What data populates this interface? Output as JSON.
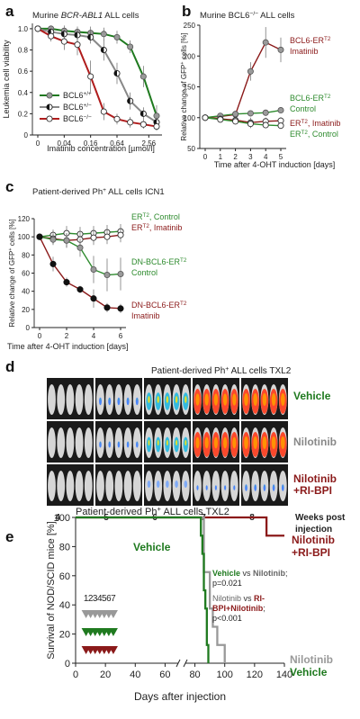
{
  "chart_data": [
    {
      "id": "a",
      "type": "line",
      "panel_letter": "a",
      "title_parts": [
        "Murine ",
        "BCR-ABL1",
        " ALL cells"
      ],
      "xlabel": "Imatinib concentration [µmol/l]",
      "ylabel": "Leukemia cell viability",
      "x_tick_labels": [
        "0",
        "0.04",
        "0.16",
        "0.64",
        "2.56"
      ],
      "y_tick_labels": [
        "0",
        "0.2",
        "0.4",
        "0.6",
        "0.8",
        "1.0"
      ],
      "ylim": [
        0,
        1.05
      ],
      "legend_position": "bottom-left",
      "series": [
        {
          "name": "BCL6+/+",
          "label_base": "BCL6",
          "label_sup": "+/+",
          "color": "#1f7a1f",
          "marker": "gray-filled",
          "x": [
            0,
            1,
            2,
            3,
            4,
            5,
            6,
            7,
            8,
            9
          ],
          "y": [
            1.0,
            1.0,
            0.98,
            0.97,
            0.96,
            0.95,
            0.92,
            0.83,
            0.55,
            0.18
          ],
          "err": [
            0.02,
            0.03,
            0.05,
            0.05,
            0.06,
            0.06,
            0.06,
            0.06,
            0.1,
            0.1
          ]
        },
        {
          "name": "BCL6+/-",
          "label_base": "BCL6",
          "label_sup": "+/−",
          "color": "#888888",
          "marker": "half",
          "x": [
            0,
            1,
            2,
            3,
            4,
            5,
            6,
            7,
            8,
            9
          ],
          "y": [
            1.0,
            0.97,
            0.95,
            0.94,
            0.92,
            0.8,
            0.58,
            0.32,
            0.2,
            0.12
          ],
          "err": [
            0.02,
            0.03,
            0.04,
            0.06,
            0.06,
            0.1,
            0.1,
            0.08,
            0.06,
            0.04
          ]
        },
        {
          "name": "BCL6-/-",
          "label_base": "BCL6",
          "label_sup": "−/−",
          "color": "#b01c1c",
          "marker": "open",
          "x": [
            0,
            1,
            2,
            3,
            4,
            5,
            6,
            7,
            8,
            9
          ],
          "y": [
            1.0,
            0.93,
            0.88,
            0.85,
            0.55,
            0.22,
            0.15,
            0.12,
            0.1,
            0.08
          ],
          "err": [
            0.02,
            0.05,
            0.08,
            0.1,
            0.15,
            0.08,
            0.05,
            0.05,
            0.04,
            0.04
          ]
        }
      ]
    },
    {
      "id": "b",
      "type": "line",
      "panel_letter": "b",
      "title_parts": [
        "Murine BCL6",
        "−/−",
        " ALL cells"
      ],
      "xlabel": "Time after 4-OHT induction [days]",
      "ylabel_parts": [
        "Relative change of GFP",
        "+",
        " cells [%]"
      ],
      "x_tick_labels": [
        "0",
        "1",
        "2",
        "3",
        "4",
        "5"
      ],
      "y_tick_labels": [
        "50",
        "100",
        "150",
        "200",
        "250"
      ],
      "xlim": [
        0,
        5
      ],
      "ylim": [
        50,
        250
      ],
      "series": [
        {
          "name": "BCL6-ERT2 Imatinib",
          "label_lines": [
            [
              "BCL6-ER",
              "T2"
            ],
            [
              "Imatinib",
              ""
            ]
          ],
          "color": "#8b1a1a",
          "marker": "gray-filled",
          "x": [
            0,
            1,
            2,
            3,
            4,
            5
          ],
          "y": [
            100,
            102,
            105,
            175,
            222,
            210
          ],
          "err": [
            3,
            4,
            5,
            15,
            25,
            20
          ]
        },
        {
          "name": "BCL6-ERT2 Control",
          "label_lines": [
            [
              "BCL6-ER",
              "T2"
            ],
            [
              "Control",
              ""
            ]
          ],
          "color": "#2e8b2e",
          "marker": "gray-filled",
          "x": [
            0,
            1,
            2,
            3,
            4,
            5
          ],
          "y": [
            100,
            103,
            106,
            107,
            108,
            112
          ],
          "err": [
            3,
            4,
            4,
            4,
            5,
            5
          ]
        },
        {
          "name": "ERT2 Imatinib",
          "label_lines": [
            [
              "ER",
              "T2",
              ", Imatinib"
            ]
          ],
          "color": "#8b1a1a",
          "marker": "open",
          "x": [
            0,
            1,
            2,
            3,
            4,
            5
          ],
          "y": [
            100,
            98,
            96,
            92,
            94,
            95
          ],
          "err": [
            3,
            5,
            6,
            8,
            6,
            6
          ]
        },
        {
          "name": "ERT2 Control",
          "label_lines": [
            [
              "ER",
              "T2",
              ", Control"
            ]
          ],
          "color": "#2e8b2e",
          "marker": "open",
          "x": [
            0,
            1,
            2,
            3,
            4,
            5
          ],
          "y": [
            100,
            97,
            94,
            90,
            88,
            87
          ],
          "err": [
            3,
            5,
            5,
            7,
            5,
            5
          ]
        }
      ]
    },
    {
      "id": "c",
      "type": "line",
      "panel_letter": "c",
      "title_parts": [
        "Patient-derived Ph",
        "+",
        " ALL cells ICN1"
      ],
      "xlabel": "Time after 4-OHT induction [days]",
      "ylabel_parts": [
        "Relative change of GFP",
        "+",
        " cells [%]"
      ],
      "x_tick_labels": [
        "0",
        "2",
        "4",
        "6"
      ],
      "y_tick_labels": [
        "0",
        "20",
        "40",
        "60",
        "80",
        "100",
        "120"
      ],
      "xlim": [
        0,
        6
      ],
      "ylim": [
        0,
        120
      ],
      "series": [
        {
          "name": "ERT2, Control",
          "label_lines": [
            [
              "ER",
              "T2",
              ", Control"
            ]
          ],
          "color": "#2e8b2e",
          "marker": "open",
          "x": [
            0,
            1,
            2,
            3,
            4,
            5,
            6
          ],
          "y": [
            100,
            102,
            104,
            103,
            104,
            105,
            106
          ],
          "err": [
            3,
            6,
            8,
            8,
            8,
            8,
            8
          ]
        },
        {
          "name": "ERT2, Imatinib",
          "label_lines": [
            [
              "ER",
              "T2",
              ", Imatinib"
            ]
          ],
          "color": "#8b1a1a",
          "marker": "open",
          "x": [
            0,
            1,
            2,
            3,
            4,
            5,
            6
          ],
          "y": [
            100,
            98,
            96,
            97,
            99,
            100,
            102
          ],
          "err": [
            3,
            6,
            8,
            8,
            8,
            8,
            8
          ]
        },
        {
          "name": "DN-BCL6-ERT2 Control",
          "label_lines": [
            [
              "DN-BCL6-ER",
              "T2"
            ],
            [
              "Control",
              ""
            ]
          ],
          "color": "#2e8b2e",
          "marker": "gray-filled",
          "x": [
            0,
            1,
            2,
            3,
            4,
            5,
            6
          ],
          "y": [
            100,
            97,
            96,
            88,
            64,
            58,
            59
          ],
          "err": [
            3,
            6,
            8,
            10,
            15,
            18,
            18
          ]
        },
        {
          "name": "DN-BCL6-ERT2 Imatinib",
          "label_lines": [
            [
              "DN-BCL6-ER",
              "T2"
            ],
            [
              "Imatinib",
              ""
            ]
          ],
          "color": "#8b1a1a",
          "marker": "black",
          "x": [
            0,
            1,
            2,
            3,
            4,
            5,
            6
          ],
          "y": [
            100,
            70,
            50,
            42,
            32,
            22,
            21
          ],
          "err": [
            3,
            8,
            5,
            4,
            10,
            5,
            5
          ]
        }
      ]
    },
    {
      "id": "d",
      "type": "other",
      "panel_letter": "d",
      "title_parts": [
        "Patient-derived Ph",
        "+",
        " ALL cells TXL2"
      ],
      "rows": [
        {
          "name": "Vehicle",
          "color": "#1f7a1f",
          "label_lines": [
            "Vehicle"
          ],
          "intensity": [
            0.0,
            0.15,
            0.55,
            0.95,
            1.0
          ]
        },
        {
          "name": "Nilotinib",
          "color": "#888888",
          "label_lines": [
            "Nilotinib"
          ],
          "intensity": [
            0.0,
            0.1,
            0.45,
            0.9,
            1.0
          ]
        },
        {
          "name": "Nilotinib+RI-BPI",
          "color": "#8b1a1a",
          "label_lines": [
            "Nilotinib",
            "+RI-BPI"
          ],
          "intensity": [
            0.0,
            0.0,
            0.02,
            0.05,
            0.12
          ]
        }
      ],
      "week_labels": [
        "4",
        "5",
        "6",
        "7",
        "8"
      ],
      "week_caption_lines": [
        "Weeks post",
        "injection"
      ]
    },
    {
      "id": "e",
      "type": "line",
      "panel_letter": "e",
      "title_parts": [
        "Patient-derived Ph",
        "+",
        " ALL cells TXL2"
      ],
      "xlabel": "Days after injection",
      "ylabel": "Survival of NOD/SCID mice [%]",
      "x_tick_labels": [
        "0",
        "20",
        "40",
        "60",
        "80",
        "100",
        "120",
        "140"
      ],
      "y_tick_labels": [
        "0",
        "20",
        "40",
        "60",
        "80",
        "100"
      ],
      "xlim": [
        0,
        140
      ],
      "ylim": [
        0,
        100
      ],
      "series": [
        {
          "name": "Nilotinib+RI-BPI",
          "label_lines": [
            "Nilotinib",
            "+RI-BPI"
          ],
          "color": "#8b1a1a",
          "x": [
            0,
            128,
            128,
            140
          ],
          "y": [
            100,
            100,
            87.5,
            87.5
          ]
        },
        {
          "name": "Nilotinib",
          "label_lines": [
            "Nilotinib"
          ],
          "color": "#999999",
          "x": [
            0,
            86,
            86,
            90,
            90,
            92,
            92,
            95,
            95,
            100,
            100
          ],
          "y": [
            100,
            100,
            62.5,
            62.5,
            37.5,
            37.5,
            25,
            25,
            12.5,
            12.5,
            0
          ]
        },
        {
          "name": "Vehicle",
          "label_lines": [
            "Vehicle"
          ],
          "color": "#1f7a1f",
          "x": [
            0,
            84,
            84,
            85,
            85,
            86,
            86,
            87,
            87,
            88,
            88,
            89,
            89
          ],
          "y": [
            100,
            100,
            87.5,
            87.5,
            75,
            75,
            50,
            50,
            37.5,
            37.5,
            12.5,
            12.5,
            0
          ]
        }
      ],
      "vehicle_label": "Vehicle",
      "stats": [
        {
          "parts": [
            "Vehicle",
            " vs ",
            "Nilotinib",
            ";"
          ],
          "colors": [
            "#1f7a1f",
            "#333333",
            "#666666",
            "#333333"
          ],
          "pval": "p=0.021"
        },
        {
          "parts": [
            "Nilotinib",
            " vs ",
            "RI-BPI+Nilotinib",
            ";"
          ],
          "colors": [
            "#666666",
            "#333333",
            "#8b1a1a",
            "#333333"
          ],
          "pval": "p<0.001"
        }
      ],
      "treatment_days": [
        "1",
        "2",
        "3",
        "4",
        "5",
        "6",
        "7"
      ],
      "treatment_colors": [
        "#999999",
        "#1f7a1f",
        "#8b1a1a"
      ]
    }
  ]
}
